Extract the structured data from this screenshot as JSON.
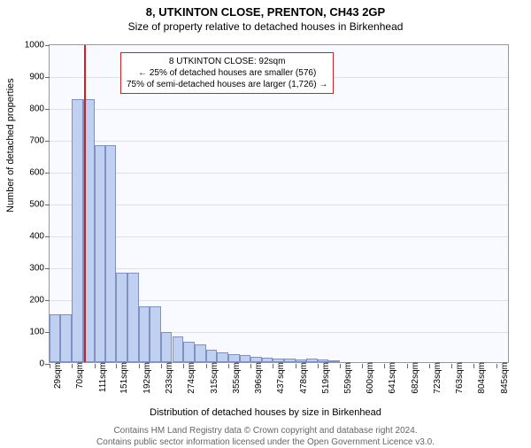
{
  "title_main": "8, UTKINTON CLOSE, PRENTON, CH43 2GP",
  "title_sub": "Size of property relative to detached houses in Birkenhead",
  "ylabel": "Number of detached properties",
  "xlabel": "Distribution of detached houses by size in Birkenhead",
  "footer_line1": "Contains HM Land Registry data © Crown copyright and database right 2024.",
  "footer_line2": "Contains public sector information licensed under the Open Government Licence v3.0.",
  "chart": {
    "type": "histogram",
    "background_color": "#f8faff",
    "bar_fill": "#c0d0f0",
    "bar_stroke": "#8090c0",
    "grid_color": "#e0e0e0",
    "refline_color": "#d02020",
    "xlim": [
      29,
      870
    ],
    "ylim": [
      0,
      1000
    ],
    "ytick_step": 100,
    "xtick_labels": [
      "29sqm",
      "70sqm",
      "111sqm",
      "151sqm",
      "192sqm",
      "233sqm",
      "274sqm",
      "315sqm",
      "355sqm",
      "396sqm",
      "437sqm",
      "478sqm",
      "519sqm",
      "559sqm",
      "600sqm",
      "641sqm",
      "682sqm",
      "723sqm",
      "763sqm",
      "804sqm",
      "845sqm"
    ],
    "xtick_values": [
      29,
      70,
      111,
      151,
      192,
      233,
      274,
      315,
      355,
      396,
      437,
      478,
      519,
      559,
      600,
      641,
      682,
      723,
      763,
      804,
      845
    ],
    "reference_x": 92,
    "bars": [
      {
        "x0": 29,
        "x1": 49,
        "y": 150
      },
      {
        "x0": 49,
        "x1": 70,
        "y": 150
      },
      {
        "x0": 70,
        "x1": 90,
        "y": 825
      },
      {
        "x0": 90,
        "x1": 111,
        "y": 825
      },
      {
        "x0": 111,
        "x1": 131,
        "y": 680
      },
      {
        "x0": 131,
        "x1": 151,
        "y": 680
      },
      {
        "x0": 151,
        "x1": 172,
        "y": 280
      },
      {
        "x0": 172,
        "x1": 192,
        "y": 280
      },
      {
        "x0": 192,
        "x1": 212,
        "y": 175
      },
      {
        "x0": 212,
        "x1": 233,
        "y": 175
      },
      {
        "x0": 233,
        "x1": 253,
        "y": 95
      },
      {
        "x0": 253,
        "x1": 274,
        "y": 80
      },
      {
        "x0": 274,
        "x1": 294,
        "y": 65
      },
      {
        "x0": 294,
        "x1": 315,
        "y": 55
      },
      {
        "x0": 315,
        "x1": 335,
        "y": 40
      },
      {
        "x0": 335,
        "x1": 355,
        "y": 30
      },
      {
        "x0": 355,
        "x1": 376,
        "y": 25
      },
      {
        "x0": 376,
        "x1": 396,
        "y": 22
      },
      {
        "x0": 396,
        "x1": 417,
        "y": 18
      },
      {
        "x0": 417,
        "x1": 437,
        "y": 14
      },
      {
        "x0": 437,
        "x1": 457,
        "y": 12
      },
      {
        "x0": 457,
        "x1": 478,
        "y": 10
      },
      {
        "x0": 478,
        "x1": 498,
        "y": 8
      },
      {
        "x0": 498,
        "x1": 519,
        "y": 12
      },
      {
        "x0": 519,
        "x1": 539,
        "y": 8
      },
      {
        "x0": 539,
        "x1": 559,
        "y": 6
      }
    ],
    "annotation": {
      "line1": "8 UTKINTON CLOSE: 92sqm",
      "line2": "← 25% of detached houses are smaller (576)",
      "line3": "75% of semi-detached houses are larger (1,726) →"
    },
    "title_fontsize": 13,
    "subtitle_fontsize": 12,
    "axis_label_fontsize": 11,
    "tick_fontsize": 10,
    "annotation_fontsize": 10
  }
}
